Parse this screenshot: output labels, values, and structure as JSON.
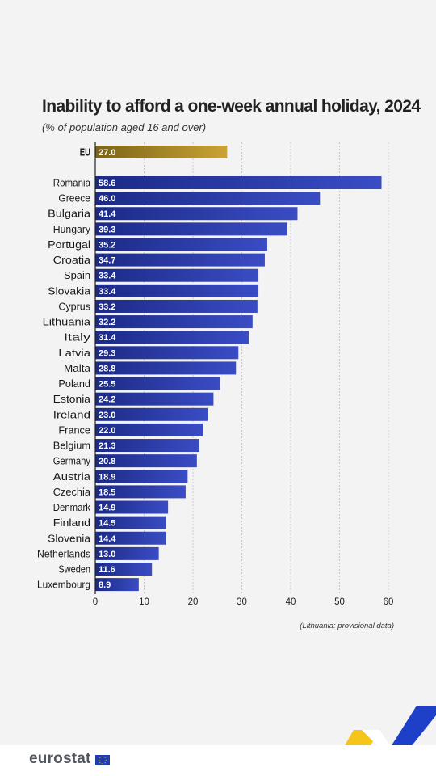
{
  "title": "Inability to afford a one-week annual holiday, 2024",
  "subtitle": "(% of population aged 16 and over)",
  "note": "(Lithuania: provisional data)",
  "logo": {
    "text": "eurostat",
    "flag_icon": "eu-flag-icon"
  },
  "colors": {
    "eu_bar_from": "#7b6418",
    "eu_bar_to": "#c9a434",
    "bar_from": "#1b2a86",
    "bar_to": "#3a4cc4",
    "accent_yellow": "#f5c518",
    "accent_blue": "#1e40c8"
  },
  "chart_data": {
    "type": "bar",
    "orientation": "horizontal",
    "title": "Inability to afford a one-week annual holiday, 2024",
    "subtitle": "(% of population aged 16 and over)",
    "xlim": [
      0,
      60
    ],
    "xticks": [
      0,
      10,
      20,
      30,
      40,
      50,
      60
    ],
    "grid": "vertical dashed",
    "highlight": {
      "category": "EU",
      "value": 27.0,
      "label": "27.0"
    },
    "categories": [
      "Romania",
      "Greece",
      "Bulgaria",
      "Hungary",
      "Portugal",
      "Croatia",
      "Spain",
      "Slovakia",
      "Cyprus",
      "Lithuania",
      "Italy",
      "Latvia",
      "Malta",
      "Poland",
      "Estonia",
      "Ireland",
      "France",
      "Belgium",
      "Germany",
      "Austria",
      "Czechia",
      "Denmark",
      "Finland",
      "Slovenia",
      "Netherlands",
      "Sweden",
      "Luxembourg"
    ],
    "values": [
      58.6,
      46.0,
      41.4,
      39.3,
      35.2,
      34.7,
      33.4,
      33.4,
      33.2,
      32.2,
      31.4,
      29.3,
      28.8,
      25.5,
      24.2,
      23.0,
      22.0,
      21.3,
      20.8,
      18.9,
      18.5,
      14.9,
      14.5,
      14.4,
      13.0,
      11.6,
      8.9
    ],
    "value_labels": [
      "58.6",
      "46.0",
      "41.4",
      "39.3",
      "35.2",
      "34.7",
      "33.4",
      "33.4",
      "33.2",
      "32.2",
      "31.4",
      "29.3",
      "28.8",
      "25.5",
      "24.2",
      "23.0",
      "22.0",
      "21.3",
      "20.8",
      "18.9",
      "18.5",
      "14.9",
      "14.5",
      "14.4",
      "13.0",
      "11.6",
      "8.9"
    ]
  }
}
